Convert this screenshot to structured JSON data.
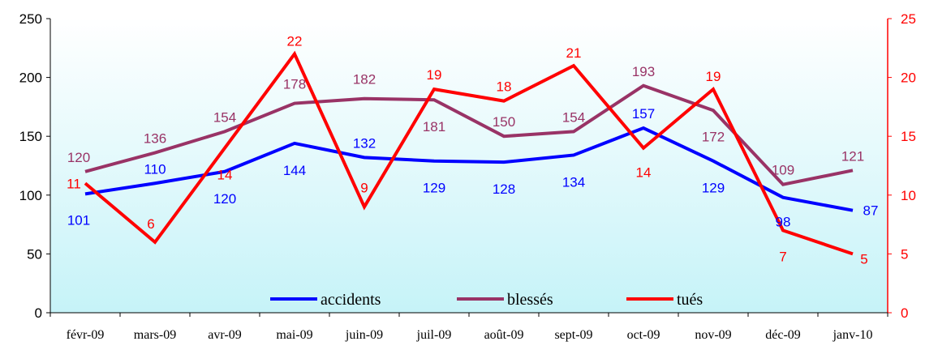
{
  "chart_data": {
    "type": "line",
    "categories": [
      "févr-09",
      "mars-09",
      "avr-09",
      "mai-09",
      "juin-09",
      "juil-09",
      "août-09",
      "sept-09",
      "oct-09",
      "nov-09",
      "déc-09",
      "janv-10"
    ],
    "y_left": {
      "min": 0,
      "max": 250,
      "ticks": [
        "0",
        "50",
        "100",
        "150",
        "200",
        "250"
      ]
    },
    "y_right": {
      "min": 0,
      "max": 25,
      "ticks": [
        "0",
        "5",
        "10",
        "15",
        "20",
        "25"
      ]
    },
    "grid": false,
    "legend_position": "bottom-inside",
    "series": [
      {
        "name": "accidents",
        "axis": "left",
        "color": "#0000ff",
        "values": [
          101,
          110,
          120,
          144,
          132,
          129,
          128,
          134,
          157,
          129,
          98,
          87
        ]
      },
      {
        "name": "blessés",
        "axis": "left",
        "color": "#993366",
        "values": [
          120,
          136,
          154,
          178,
          182,
          181,
          150,
          154,
          193,
          172,
          109,
          121
        ]
      },
      {
        "name": "tués",
        "axis": "right",
        "color": "#ff0000",
        "values": [
          11,
          6,
          14,
          22,
          9,
          19,
          18,
          21,
          14,
          19,
          7,
          5
        ]
      }
    ]
  },
  "colors": {
    "plot_bg_top": "#ffffff",
    "plot_bg_bottom": "#c6f3f8",
    "right_axis": "#ff0000"
  }
}
